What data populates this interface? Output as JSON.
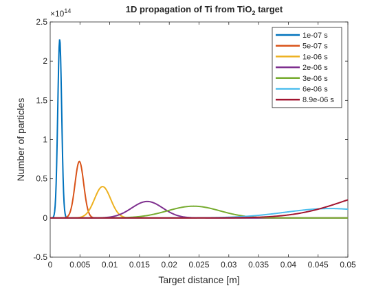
{
  "chart_data": {
    "type": "line",
    "title": "1D propagation of Ti from TiO",
    "title_sub": "2",
    "title_tail": " target",
    "xlabel": "Target distance [m]",
    "ylabel": "Number of particles",
    "xlim": [
      0,
      0.05
    ],
    "ylim": [
      -0.5,
      2.5
    ],
    "y_exponent_label": "×10",
    "y_exponent_power": "14",
    "x_ticks": [
      0,
      0.005,
      0.01,
      0.015,
      0.02,
      0.025,
      0.03,
      0.035,
      0.04,
      0.045,
      0.05
    ],
    "x_tick_labels": [
      "0",
      "0.005",
      "0.01",
      "0.015",
      "0.02",
      "0.025",
      "0.03",
      "0.035",
      "0.04",
      "0.045",
      "0.05"
    ],
    "y_ticks": [
      -0.5,
      0,
      0.5,
      1,
      1.5,
      2,
      2.5
    ],
    "y_tick_labels": [
      "-0.5",
      "0",
      "0.5",
      "1",
      "1.5",
      "2",
      "2.5"
    ],
    "grid": false,
    "legend_position": "top-right",
    "series": [
      {
        "name": "1e-07 s",
        "color": "#0072BD",
        "peak_x": 0.0016,
        "peak_y": 2.28,
        "width": 0.00033
      },
      {
        "name": "5e-07 s",
        "color": "#D95319",
        "peak_x": 0.0049,
        "peak_y": 0.72,
        "width": 0.00073
      },
      {
        "name": "1e-06 s",
        "color": "#EDB120",
        "peak_x": 0.0088,
        "peak_y": 0.4,
        "width": 0.00135
      },
      {
        "name": "2e-06 s",
        "color": "#7E2F8E",
        "peak_x": 0.0163,
        "peak_y": 0.21,
        "width": 0.0026
      },
      {
        "name": "3e-06 s",
        "color": "#77AC30",
        "peak_x": 0.0241,
        "peak_y": 0.15,
        "width": 0.0044
      },
      {
        "name": "6e-06 s",
        "color": "#4DBEEE",
        "peak_x": 0.047,
        "peak_y": 0.12,
        "width": 0.0075
      },
      {
        "name": "8.9e-06 s",
        "color": "#A2142F",
        "peak_x": 0.058,
        "peak_y": 0.36,
        "width": 0.0085
      }
    ]
  }
}
